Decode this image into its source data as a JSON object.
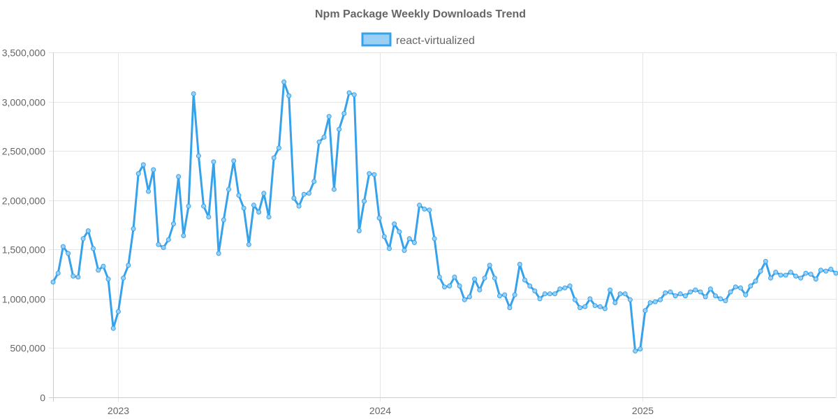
{
  "colors": {
    "line": "#36a2eb",
    "fill": "#9ad0f5",
    "grid": "#e5e5e5",
    "text": "#666666"
  },
  "chart_data": {
    "type": "line",
    "title": "Npm Package Weekly Downloads Trend",
    "legend": {
      "position": "top",
      "entries": [
        "react-virtualized"
      ]
    },
    "ylim": [
      0,
      3500000
    ],
    "yticks": [
      0,
      500000,
      1000000,
      1500000,
      2000000,
      2500000,
      3000000,
      3500000
    ],
    "ytick_labels": [
      "0",
      "500,000",
      "1,000,000",
      "1,500,000",
      "2,000,000",
      "2,500,000",
      "3,000,000",
      "3,500,000"
    ],
    "xlim": [
      "2022-10-02",
      "2025-09-28"
    ],
    "xticks": [
      "2023-01-01",
      "2024-01-01",
      "2025-01-01"
    ],
    "xtick_labels": [
      "2023",
      "2024",
      "2025"
    ],
    "series": [
      {
        "name": "react-virtualized",
        "start_date": "2022-10-02",
        "interval_days": 7,
        "values": [
          1170000,
          1260000,
          1530000,
          1460000,
          1230000,
          1220000,
          1610000,
          1690000,
          1510000,
          1290000,
          1330000,
          1200000,
          700000,
          870000,
          1210000,
          1340000,
          1710000,
          2270000,
          2360000,
          2090000,
          2310000,
          1550000,
          1520000,
          1600000,
          1760000,
          2240000,
          1640000,
          1940000,
          3080000,
          2450000,
          1940000,
          1830000,
          2390000,
          1460000,
          1800000,
          2110000,
          2400000,
          2050000,
          1920000,
          1550000,
          1950000,
          1880000,
          2070000,
          1830000,
          2430000,
          2530000,
          3200000,
          3060000,
          2020000,
          1940000,
          2060000,
          2070000,
          2190000,
          2590000,
          2640000,
          2850000,
          2110000,
          2720000,
          2880000,
          3090000,
          3070000,
          1690000,
          1990000,
          2270000,
          2260000,
          1820000,
          1630000,
          1510000,
          1760000,
          1680000,
          1490000,
          1610000,
          1570000,
          1950000,
          1910000,
          1900000,
          1610000,
          1220000,
          1120000,
          1130000,
          1220000,
          1130000,
          990000,
          1020000,
          1200000,
          1090000,
          1210000,
          1340000,
          1210000,
          1030000,
          1040000,
          910000,
          1040000,
          1350000,
          1190000,
          1130000,
          1080000,
          1000000,
          1050000,
          1050000,
          1050000,
          1100000,
          1110000,
          1130000,
          990000,
          910000,
          920000,
          1000000,
          930000,
          920000,
          900000,
          1090000,
          960000,
          1050000,
          1050000,
          990000,
          470000,
          490000,
          880000,
          960000,
          970000,
          990000,
          1060000,
          1070000,
          1030000,
          1050000,
          1030000,
          1070000,
          1090000,
          1070000,
          1020000,
          1100000,
          1030000,
          1000000,
          980000,
          1070000,
          1120000,
          1110000,
          1040000,
          1130000,
          1180000,
          1280000,
          1380000,
          1210000,
          1270000,
          1240000,
          1240000,
          1270000,
          1230000,
          1210000,
          1260000,
          1250000,
          1200000,
          1290000,
          1280000,
          1300000,
          1260000
        ]
      }
    ]
  }
}
